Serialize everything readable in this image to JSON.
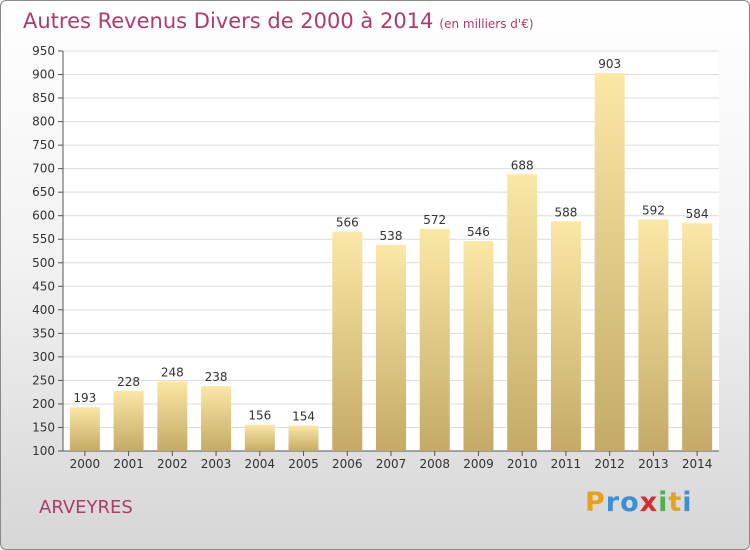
{
  "title": {
    "main": "Autres Revenus Divers de 2000 à 2014",
    "unit": "(en milliers d'€)"
  },
  "location": "ARVEYRES",
  "logo": {
    "letters": [
      "P",
      "r",
      "o",
      "x",
      "i",
      "t",
      "i"
    ],
    "colors": [
      "#e6a21e",
      "#3b8fd6",
      "#3b8fd6",
      "#d32f2f",
      "#4caf50",
      "#e6a21e",
      "#3b8fd6"
    ]
  },
  "colors": {
    "bar_top": "#fbe7a6",
    "bar_bottom": "#c4aa66",
    "title": "#b03a6a"
  },
  "chart_data": {
    "type": "bar",
    "categories": [
      "2000",
      "2001",
      "2002",
      "2003",
      "2004",
      "2005",
      "2006",
      "2007",
      "2008",
      "2009",
      "2010",
      "2011",
      "2012",
      "2013",
      "2014"
    ],
    "values": [
      193,
      228,
      248,
      238,
      156,
      154,
      566,
      538,
      572,
      546,
      688,
      588,
      903,
      592,
      584
    ],
    "ylim": [
      100,
      950
    ],
    "yticks": [
      100,
      150,
      200,
      250,
      300,
      350,
      400,
      450,
      500,
      550,
      600,
      650,
      700,
      750,
      800,
      850,
      900,
      950
    ],
    "grid": true
  }
}
